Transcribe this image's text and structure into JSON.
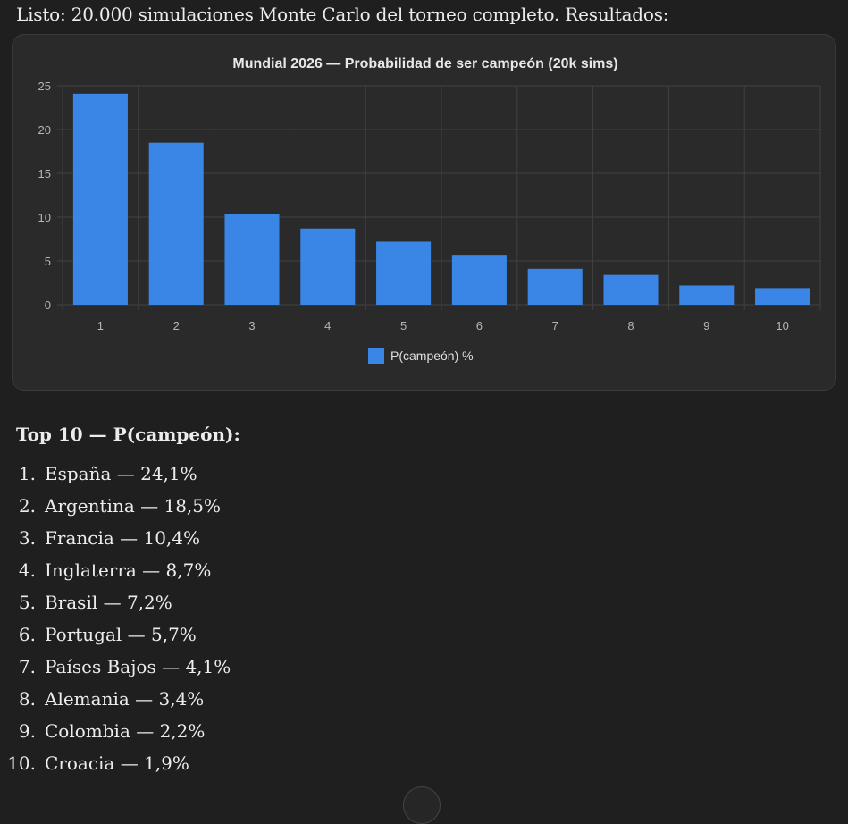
{
  "intro_text": "Listo: 20.000 simulaciones Monte Carlo del torneo completo. Resultados:",
  "chart_data": {
    "type": "bar",
    "title": "Mundial 2026 — Probabilidad de ser campeón (20k sims)",
    "categories": [
      "1",
      "2",
      "3",
      "4",
      "5",
      "6",
      "7",
      "8",
      "9",
      "10"
    ],
    "series": [
      {
        "name": "P(campeón) %",
        "values": [
          24.1,
          18.5,
          10.4,
          8.7,
          7.2,
          5.7,
          4.1,
          3.4,
          2.2,
          1.9
        ],
        "color": "#3a86e6"
      }
    ],
    "yticks": [
      "0",
      "5",
      "10",
      "15",
      "20",
      "25"
    ],
    "ylim": [
      0,
      25
    ],
    "grid": true,
    "legend_position": "bottom",
    "xlabel": "",
    "ylabel": ""
  },
  "list_heading": "Top 10 — P(campeón):",
  "ranking": [
    {
      "num": "1.",
      "text": "España — 24,1%"
    },
    {
      "num": "2.",
      "text": "Argentina — 18,5%"
    },
    {
      "num": "3.",
      "text": "Francia — 10,4%"
    },
    {
      "num": "4.",
      "text": "Inglaterra — 8,7%"
    },
    {
      "num": "5.",
      "text": "Brasil — 7,2%"
    },
    {
      "num": "6.",
      "text": "Portugal — 5,7%"
    },
    {
      "num": "7.",
      "text": "Países Bajos — 4,1%"
    },
    {
      "num": "8.",
      "text": "Alemania — 3,4%"
    },
    {
      "num": "9.",
      "text": "Colombia — 2,2%"
    },
    {
      "num": "10.",
      "text": "Croacia — 1,9%"
    }
  ],
  "colors": {
    "background": "#1f1f1f",
    "card": "#2a2a2a",
    "grid": "#414141",
    "bar": "#3a86e6"
  }
}
